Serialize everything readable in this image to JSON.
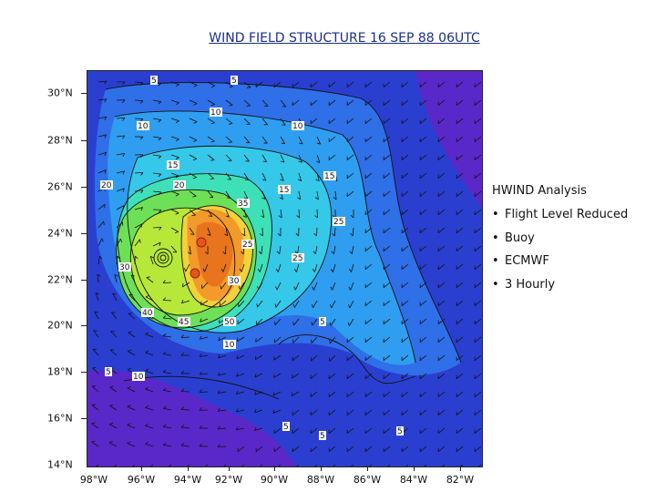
{
  "title": "WIND FIELD STRUCTURE 16 SEP 88 06UTC",
  "lat_labels": [
    "30°N",
    "28°N",
    "26°N",
    "24°N",
    "22°N",
    "20°N",
    "18°N",
    "16°N",
    "14°N"
  ],
  "lon_labels": [
    "98°W",
    "96°W",
    "94°W",
    "92°W",
    "90°W",
    "88°W",
    "86°W",
    "84°W",
    "82°W"
  ],
  "legend": {
    "title": "HWIND Analysis",
    "items": [
      "Flight Level Reduced",
      "Buoy",
      "ECMWF",
      "3 Hourly"
    ]
  },
  "contour_labels": [
    "5",
    "5",
    "10",
    "10",
    "10",
    "15",
    "15",
    "15",
    "20",
    "20",
    "25",
    "25",
    "25",
    "30",
    "30",
    "35",
    "40",
    "45",
    "50",
    "5",
    "10",
    "10",
    "5",
    "5",
    "5",
    "5"
  ],
  "colors": {
    "purple": "#5a28c8",
    "deep_blue": "#2a3fd0",
    "blue": "#2f6fe8",
    "sky": "#2f9ef0",
    "cyan": "#35c8e8",
    "teal": "#3ee0b8",
    "green": "#6ee058",
    "lime": "#b6e83a",
    "yellow": "#f2d23a",
    "orange": "#f29a2a",
    "dark_orange": "#e8741e"
  }
}
